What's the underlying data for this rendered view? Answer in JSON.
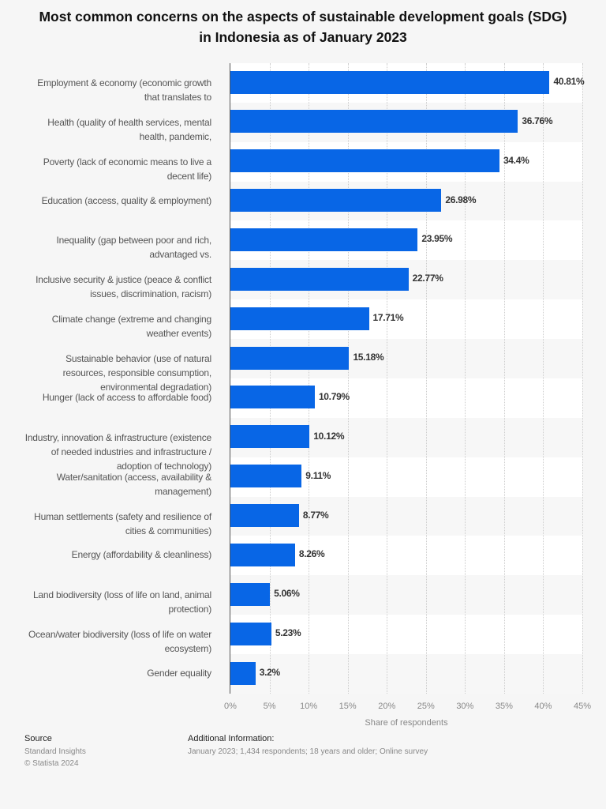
{
  "chart_data": {
    "type": "bar",
    "orientation": "horizontal",
    "title": "Most common concerns on the aspects of sustainable development goals (SDG) in Indonesia as of January 2023",
    "xlabel": "Share of respondents",
    "xlim": [
      0,
      45
    ],
    "ticks": [
      "0%",
      "5%",
      "10%",
      "15%",
      "20%",
      "25%",
      "30%",
      "35%",
      "40%",
      "45%"
    ],
    "grid": true,
    "bar_color": "#0866e6",
    "categories": [
      "Employment & economy (economic growth that translates to",
      "Health (quality of health services, mental health, pandemic,",
      "Poverty (lack of economic means to live a decent life)",
      "Education (access, quality & employment)",
      "Inequality (gap between poor and rich, advantaged vs.",
      "Inclusive security & justice (peace & conflict issues, discrimination, racism)",
      "Climate change (extreme and changing weather events)",
      "Sustainable behavior (use of natural resources, responsible consumption, environmental degradation)",
      "Hunger (lack of access to affordable food)",
      "Industry, innovation & infrastructure (existence of needed industries and infrastructure / adoption of technology)",
      "Water/sanitation (access, availability & management)",
      "Human settlements (safety and resilience of cities & communities)",
      "Energy (affordability & cleanliness)",
      "Land biodiversity (loss of life on land, animal protection)",
      "Ocean/water biodiversity (loss of life on water ecosystem)",
      "Gender equality"
    ],
    "values": [
      40.81,
      36.76,
      34.4,
      26.98,
      23.95,
      22.77,
      17.71,
      15.18,
      10.79,
      10.12,
      9.11,
      8.77,
      8.26,
      5.06,
      5.23,
      3.2
    ],
    "labels": [
      "40.81%",
      "36.76%",
      "34.4%",
      "26.98%",
      "23.95%",
      "22.77%",
      "17.71%",
      "15.18%",
      "10.79%",
      "10.12%",
      "9.11%",
      "8.77%",
      "8.26%",
      "5.06%",
      "5.23%",
      "3.2%"
    ]
  },
  "footer": {
    "source_heading": "Source",
    "source": "Standard Insights",
    "copyright": "© Statista 2024",
    "info_heading": "Additional Information:",
    "info": "January 2023; 1,434 respondents; 18 years and older; Online survey"
  }
}
